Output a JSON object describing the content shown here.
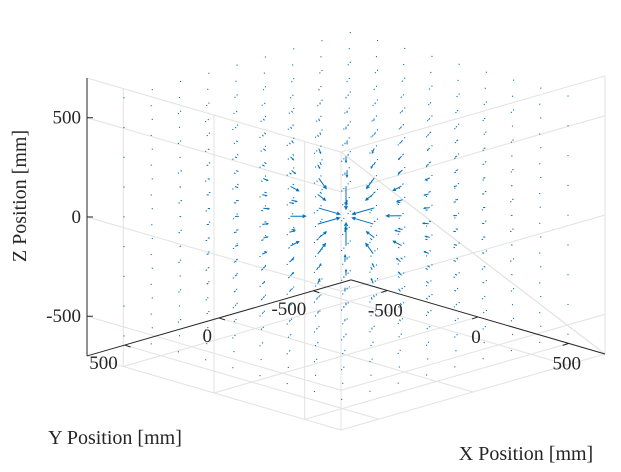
{
  "chart_data": {
    "type": "quiver3",
    "title": "",
    "xlabel": "X Position [mm]",
    "ylabel": "Y Position [mm]",
    "zlabel": "Z Position [mm]",
    "xlim": [
      -700,
      700
    ],
    "ylim": [
      -700,
      700
    ],
    "zlim": [
      -700,
      700
    ],
    "xticks": [
      -500,
      0,
      500
    ],
    "yticks": [
      -500,
      0,
      500
    ],
    "zticks": [
      -500,
      0,
      500
    ],
    "xtick_labels": [
      "-500",
      "0",
      "500"
    ],
    "ytick_labels": [
      "-500",
      "0",
      "500"
    ],
    "ztick_labels": [
      "-500",
      "0",
      "500"
    ],
    "grid": true,
    "field": "radial vector field pointing toward the origin, magnitude increasing near the center",
    "grid_points": [
      -600,
      -450,
      -300,
      -150,
      0,
      150,
      300,
      450,
      600
    ],
    "arrow_color": "#0072BD"
  }
}
